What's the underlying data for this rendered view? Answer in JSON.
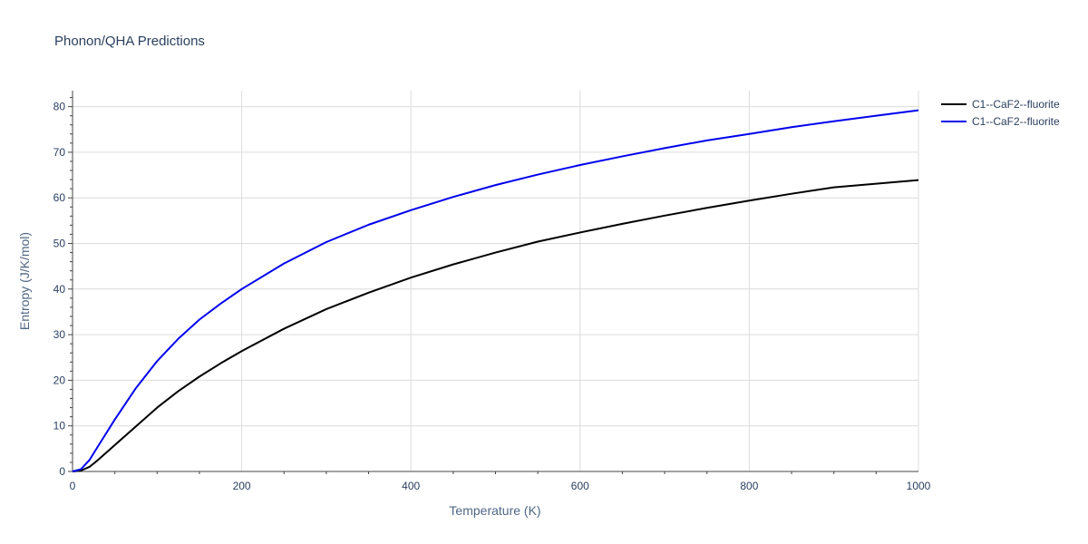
{
  "chart_data": {
    "type": "line",
    "title": "Phonon/QHA Predictions",
    "xlabel": "Temperature (K)",
    "ylabel": "Entropy (J/K/mol)",
    "xlim": [
      0,
      1000
    ],
    "ylim": [
      0,
      83.5
    ],
    "x_ticks": [
      0,
      200,
      400,
      600,
      800,
      1000
    ],
    "y_ticks": [
      0,
      10,
      20,
      30,
      40,
      50,
      60,
      70,
      80
    ],
    "x_minor_step": 50,
    "y_minor_step": 2,
    "grid": true,
    "legend_position": "top-right",
    "series": [
      {
        "name": "C1--CaF2--fluorite",
        "color": "#000000",
        "x": [
          0,
          10,
          20,
          30,
          50,
          75,
          100,
          125,
          150,
          175,
          200,
          250,
          300,
          350,
          400,
          450,
          500,
          550,
          600,
          650,
          700,
          750,
          800,
          850,
          900,
          950,
          1000
        ],
        "y": [
          0,
          0.2,
          1.0,
          2.5,
          5.8,
          9.9,
          14.0,
          17.6,
          20.8,
          23.7,
          26.4,
          31.3,
          35.6,
          39.2,
          42.5,
          45.4,
          48.0,
          50.4,
          52.4,
          54.3,
          56.1,
          57.8,
          59.4,
          60.9,
          62.3,
          63.1,
          63.9
        ]
      },
      {
        "name": "C1--CaF2--fluorite",
        "color": "#0000ee",
        "x": [
          0,
          10,
          20,
          30,
          50,
          75,
          100,
          125,
          150,
          175,
          200,
          250,
          300,
          350,
          400,
          450,
          500,
          550,
          600,
          650,
          700,
          750,
          800,
          850,
          900,
          950,
          1000
        ],
        "y": [
          0,
          0.5,
          2.5,
          5.5,
          11.4,
          18.3,
          24.2,
          29.1,
          33.3,
          36.8,
          40.0,
          45.6,
          50.3,
          54.1,
          57.3,
          60.2,
          62.8,
          65.1,
          67.2,
          69.1,
          70.9,
          72.6,
          74.0,
          75.5,
          76.8,
          78.0,
          79.2
        ]
      }
    ]
  }
}
